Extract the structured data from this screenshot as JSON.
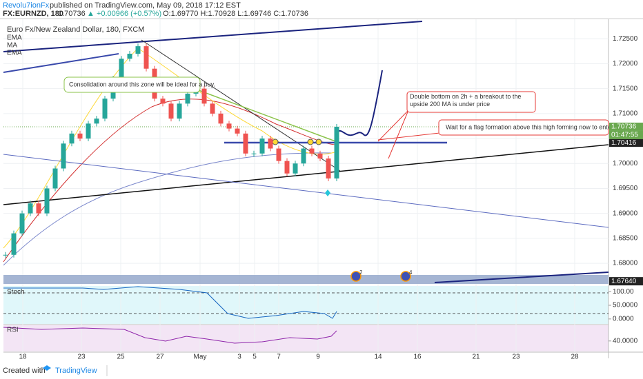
{
  "header": {
    "publisher": "Revolu7ionFx",
    "published": "published on TradingView.com, May 09, 2018 17:12 EST",
    "symbol_line": "FX:EURNZD, 180",
    "last": "1.70736",
    "change": "▲ +0.00966 (+0.57%)",
    "ohlc": "O:1.69770 H:1.70928 L:1.69746 C:1.70736"
  },
  "legend": {
    "title": "Euro Fx/New Zealand Dollar, 180, FXCM",
    "items": [
      "EMA",
      "MA",
      "EMA"
    ]
  },
  "annotations": [
    "Consolidation around this zone will be ideal for a buy.",
    "Double bottom on 2h + a breakout to the upside 200 MA is under price",
    "Wait for a flag formation above this high forming now to enter longs"
  ],
  "markers": [
    "2",
    "4"
  ],
  "chart_data": {
    "type": "line",
    "up_color": "#26a69a",
    "down_color": "#ef5350",
    "values": [
      1.6817,
      1.686,
      1.69,
      1.692,
      1.69,
      1.695,
      1.699,
      1.704,
      1.706,
      1.705,
      1.708,
      1.709,
      1.713,
      1.717,
      1.721,
      1.722,
      1.7235,
      1.719,
      1.713,
      1.712,
      1.709,
      1.712,
      1.714,
      1.715,
      1.712,
      1.71,
      1.708,
      1.707,
      1.706,
      1.702,
      1.702,
      1.705,
      1.703,
      1.7005,
      1.698,
      1.7,
      1.703,
      1.702,
      1.701,
      1.697,
      1.70736
    ],
    "ylim": [
      1.6778,
      1.7289
    ],
    "yticks": [
      {
        "value": 1.725,
        "label": "1.72500"
      },
      {
        "value": 1.72,
        "label": "1.72000"
      },
      {
        "value": 1.715,
        "label": "1.71500"
      },
      {
        "value": 1.71,
        "label": "1.71000"
      },
      {
        "value": 1.705,
        "label": "1.70500"
      },
      {
        "value": 1.7,
        "label": "1.70000"
      },
      {
        "value": 1.695,
        "label": "1.69500"
      },
      {
        "value": 1.69,
        "label": "1.69000"
      },
      {
        "value": 1.685,
        "label": "1.68500"
      },
      {
        "value": 1.68,
        "label": "1.68000"
      }
    ],
    "price_tags": [
      {
        "value": 1.70736,
        "label": "1.70736",
        "color": "#6aa84f"
      },
      {
        "value": 1.70416,
        "label": "1.70416",
        "color": "#222222"
      },
      {
        "value": 1.6764,
        "label": "1.67640",
        "color": "#222222"
      }
    ],
    "countdown": "01:47:55",
    "x_axis_labels": [
      "18",
      "23",
      "25",
      "27",
      "May",
      "3",
      "5",
      "7",
      "9",
      "14",
      "16",
      "21",
      "23",
      "28"
    ],
    "grid": true
  },
  "stoch": {
    "title": "Stoch",
    "ylim": [
      -18,
      118
    ],
    "yticks": [
      {
        "value": 100,
        "label": "100.00"
      },
      {
        "value": 50,
        "label": "50.0000"
      },
      {
        "value": 0,
        "label": "0.0000"
      }
    ]
  },
  "rsi": {
    "title": "RSI",
    "ylim": [
      20,
      70
    ],
    "yticks": [
      {
        "value": 40,
        "label": "40.0000"
      }
    ]
  },
  "footer": {
    "created": "Created with",
    "brand": "TradingView"
  }
}
